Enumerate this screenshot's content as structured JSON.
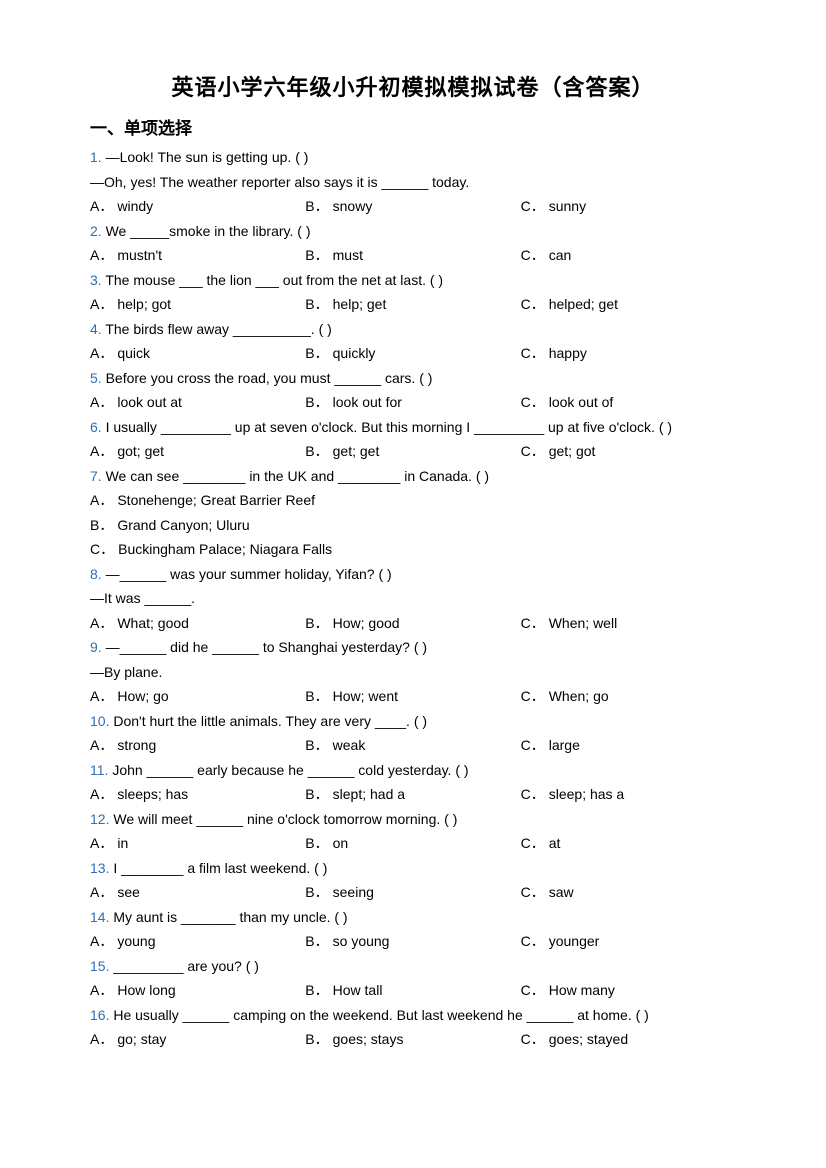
{
  "title": "英语小学六年级小升初模拟模拟试卷（含答案）",
  "section": "一、单项选择",
  "qnum_color": "#2e6fb5",
  "questions": [
    {
      "num": "1.",
      "stems": [
        "—Look! The sun is getting up. (    )",
        "—Oh, yes! The weather reporter also says it is ______ today."
      ],
      "choices": [
        {
          "l": "A．",
          "t": "windy"
        },
        {
          "l": "B．",
          "t": "snowy"
        },
        {
          "l": "C．",
          "t": "sunny"
        }
      ],
      "layout": "col3"
    },
    {
      "num": "2.",
      "stems": [
        "We _____smoke in the library. (    )"
      ],
      "choices": [
        {
          "l": "A．",
          "t": "mustn't"
        },
        {
          "l": "B．",
          "t": "must"
        },
        {
          "l": "C．",
          "t": "can"
        }
      ],
      "layout": "col3"
    },
    {
      "num": "3.",
      "stems": [
        "The mouse ___ the lion ___ out from the net at last. (    )"
      ],
      "choices": [
        {
          "l": "A．",
          "t": "help; got"
        },
        {
          "l": "B．",
          "t": "help; get"
        },
        {
          "l": "C．",
          "t": "helped; get"
        }
      ],
      "layout": "col3"
    },
    {
      "num": "4.",
      "stems": [
        "The birds flew away __________. (     )"
      ],
      "choices": [
        {
          "l": "A．",
          "t": "quick"
        },
        {
          "l": "B．",
          "t": "quickly"
        },
        {
          "l": "C．",
          "t": "happy"
        }
      ],
      "layout": "col3"
    },
    {
      "num": "5.",
      "stems": [
        "Before you cross the road, you must ______ cars. (    )"
      ],
      "choices": [
        {
          "l": "A．",
          "t": "look out at"
        },
        {
          "l": "B．",
          "t": "look out for"
        },
        {
          "l": "C．",
          "t": "look out of"
        }
      ],
      "layout": "col3"
    },
    {
      "num": "6.",
      "stems": [
        "I usually _________ up at seven o'clock. But this morning I _________ up at five o'clock. (    )"
      ],
      "choices": [
        {
          "l": "A．",
          "t": "got; get"
        },
        {
          "l": "B．",
          "t": "get; get"
        },
        {
          "l": "C．",
          "t": "get; got"
        }
      ],
      "layout": "col3"
    },
    {
      "num": "7.",
      "stems": [
        "We can see ________ in the UK and ________ in Canada. (    )"
      ],
      "choices": [
        {
          "l": "A．",
          "t": "Stonehenge; Great Barrier Reef"
        },
        {
          "l": "B．",
          "t": "Grand Canyon; Uluru"
        },
        {
          "l": "C．",
          "t": "Buckingham Palace; Niagara Falls"
        }
      ],
      "layout": "full"
    },
    {
      "num": "8.",
      "stems": [
        "—______ was your summer holiday, Yifan? (    )",
        "—It was ______."
      ],
      "choices": [
        {
          "l": "A．",
          "t": "What; good"
        },
        {
          "l": "B．",
          "t": "How;  good"
        },
        {
          "l": "C．",
          "t": "When;  well"
        }
      ],
      "layout": "col3"
    },
    {
      "num": "9.",
      "stems": [
        "—______ did he ______ to Shanghai yesterday?   (      )",
        "—By plane."
      ],
      "choices": [
        {
          "l": "A．",
          "t": "How; go"
        },
        {
          "l": "B．",
          "t": "How; went"
        },
        {
          "l": "C．",
          "t": "When; go"
        }
      ],
      "layout": "col3"
    },
    {
      "num": "10.",
      "stems": [
        "Don't hurt the little animals. They are very ____. (     )"
      ],
      "choices": [
        {
          "l": "A．",
          "t": "strong"
        },
        {
          "l": "B．",
          "t": "weak"
        },
        {
          "l": "C．",
          "t": "large"
        }
      ],
      "layout": "col3"
    },
    {
      "num": "11.",
      "stems": [
        "John ______ early because he ______ cold yesterday. (    )"
      ],
      "choices": [
        {
          "l": "A．",
          "t": "sleeps; has"
        },
        {
          "l": "B．",
          "t": "slept; had a"
        },
        {
          "l": "C．",
          "t": "sleep; has a"
        }
      ],
      "layout": "col3"
    },
    {
      "num": "12.",
      "stems": [
        "We will meet ______ nine o'clock tomorrow morning. (     )"
      ],
      "choices": [
        {
          "l": "A．",
          "t": "in"
        },
        {
          "l": "B．",
          "t": "on"
        },
        {
          "l": "C．",
          "t": "at"
        }
      ],
      "layout": "col3"
    },
    {
      "num": "13.",
      "stems": [
        "I ________ a film last weekend. (    )"
      ],
      "choices": [
        {
          "l": "A．",
          "t": "see"
        },
        {
          "l": "B．",
          "t": "seeing"
        },
        {
          "l": "C．",
          "t": "saw"
        }
      ],
      "layout": "col3"
    },
    {
      "num": "14.",
      "stems": [
        "My aunt is _______ than my uncle. (    )"
      ],
      "choices": [
        {
          "l": "A．",
          "t": "young"
        },
        {
          "l": "B．",
          "t": "so young"
        },
        {
          "l": "C．",
          "t": "younger"
        }
      ],
      "layout": "col3"
    },
    {
      "num": "15.",
      "stems": [
        "_________ are you? (    )"
      ],
      "choices": [
        {
          "l": "A．",
          "t": "How long"
        },
        {
          "l": "B．",
          "t": "How tall"
        },
        {
          "l": "C．",
          "t": "How many"
        }
      ],
      "layout": "col3"
    },
    {
      "num": "16.",
      "stems": [
        "He usually ______ camping on the weekend. But last weekend he ______ at home. (    )"
      ],
      "choices": [
        {
          "l": "A．",
          "t": "go; stay"
        },
        {
          "l": "B．",
          "t": "goes; stays"
        },
        {
          "l": "C．",
          "t": "goes; stayed"
        }
      ],
      "layout": "col3"
    }
  ]
}
